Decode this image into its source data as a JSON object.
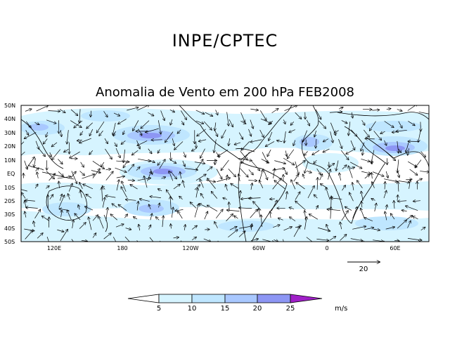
{
  "title": "INPE/CPTEC",
  "subtitle": "Anomalia de Vento em 200 hPa FEB2008",
  "lat_labels": [
    "50N",
    "40N",
    "30N",
    "20N",
    "10N",
    "EQ",
    "10S",
    "20S",
    "30S",
    "40S",
    "50S"
  ],
  "lon_labels": [
    "120E",
    "180",
    "120W",
    "60W",
    "0",
    "60E"
  ],
  "reference_vector": {
    "label": "20"
  },
  "colorbar": {
    "ticks": [
      "5",
      "10",
      "15",
      "20",
      "25"
    ],
    "units": "m/s",
    "colors": [
      "#ffffff",
      "#d6f4ff",
      "#bfe6ff",
      "#a9c8ff",
      "#8d96f4",
      "#6a62e8",
      "#a020c8"
    ]
  }
}
